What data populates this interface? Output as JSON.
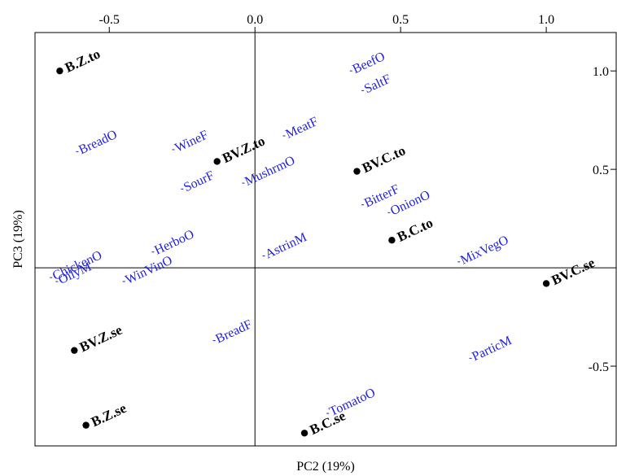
{
  "chart_data": {
    "type": "scatter",
    "title": "",
    "xlabel": "PC2 (19%)",
    "ylabel": "PC3 (19%)",
    "xlim": [
      -0.755,
      1.24
    ],
    "ylim": [
      -0.905,
      1.195
    ],
    "x_ticks": [
      -0.5,
      0.0,
      0.5,
      1.0
    ],
    "x_tick_labels": [
      "-0.5",
      "0.0",
      "0.5",
      "1.0"
    ],
    "y_ticks": [
      1.0,
      0.5,
      -0.5
    ],
    "y_tick_labels": [
      "1.0",
      "0.5",
      "-0.5"
    ],
    "x_axis_position": "top",
    "y_axis_position": "right",
    "reference_lines": {
      "x": 0,
      "y": 0
    },
    "grid": false,
    "legend": "none",
    "colors": {
      "samples": "#000000",
      "attributes": "#1f1fe0"
    },
    "series": [
      {
        "marker": "filled-circle",
        "points": [
          {
            "label": "B.Z.to",
            "x": -0.67,
            "y": 1.0
          },
          {
            "label": "BV.Z.to",
            "x": -0.13,
            "y": 0.54
          },
          {
            "label": "BV.C.to",
            "x": 0.35,
            "y": 0.49
          },
          {
            "label": "B.C.to",
            "x": 0.47,
            "y": 0.14
          },
          {
            "label": "BV.C.se",
            "x": 1.0,
            "y": -0.08
          },
          {
            "label": "BV.Z.se",
            "x": -0.62,
            "y": -0.42
          },
          {
            "label": "B.Z.se",
            "x": -0.58,
            "y": -0.8
          },
          {
            "label": "B.C.se",
            "x": 0.17,
            "y": -0.84
          }
        ]
      },
      {
        "marker": "small-dot",
        "rotated_labels": true,
        "points": [
          {
            "label": "BeefO",
            "x": 0.33,
            "y": 1.0
          },
          {
            "label": "SaltF",
            "x": 0.37,
            "y": 0.9
          },
          {
            "label": "BreadO",
            "x": -0.61,
            "y": 0.59
          },
          {
            "label": "WineF",
            "x": -0.28,
            "y": 0.6
          },
          {
            "label": "MeatF",
            "x": 0.1,
            "y": 0.67
          },
          {
            "label": "SourF",
            "x": -0.25,
            "y": 0.4
          },
          {
            "label": "MushrmO",
            "x": -0.04,
            "y": 0.43
          },
          {
            "label": "BitterF",
            "x": 0.37,
            "y": 0.32
          },
          {
            "label": "OnionO",
            "x": 0.46,
            "y": 0.28
          },
          {
            "label": "AstrinM",
            "x": 0.03,
            "y": 0.06
          },
          {
            "label": "HerboO",
            "x": -0.35,
            "y": 0.08
          },
          {
            "label": "ChickenO",
            "x": -0.7,
            "y": -0.05
          },
          {
            "label": "OilyM",
            "x": -0.68,
            "y": -0.07
          },
          {
            "label": "WinVinO",
            "x": -0.45,
            "y": -0.07
          },
          {
            "label": "MixVegO",
            "x": 0.7,
            "y": 0.03
          },
          {
            "label": "BreadF",
            "x": -0.14,
            "y": -0.37
          },
          {
            "label": "ParticM",
            "x": 0.74,
            "y": -0.46
          },
          {
            "label": "TomatoO",
            "x": 0.25,
            "y": -0.74
          }
        ]
      }
    ]
  }
}
